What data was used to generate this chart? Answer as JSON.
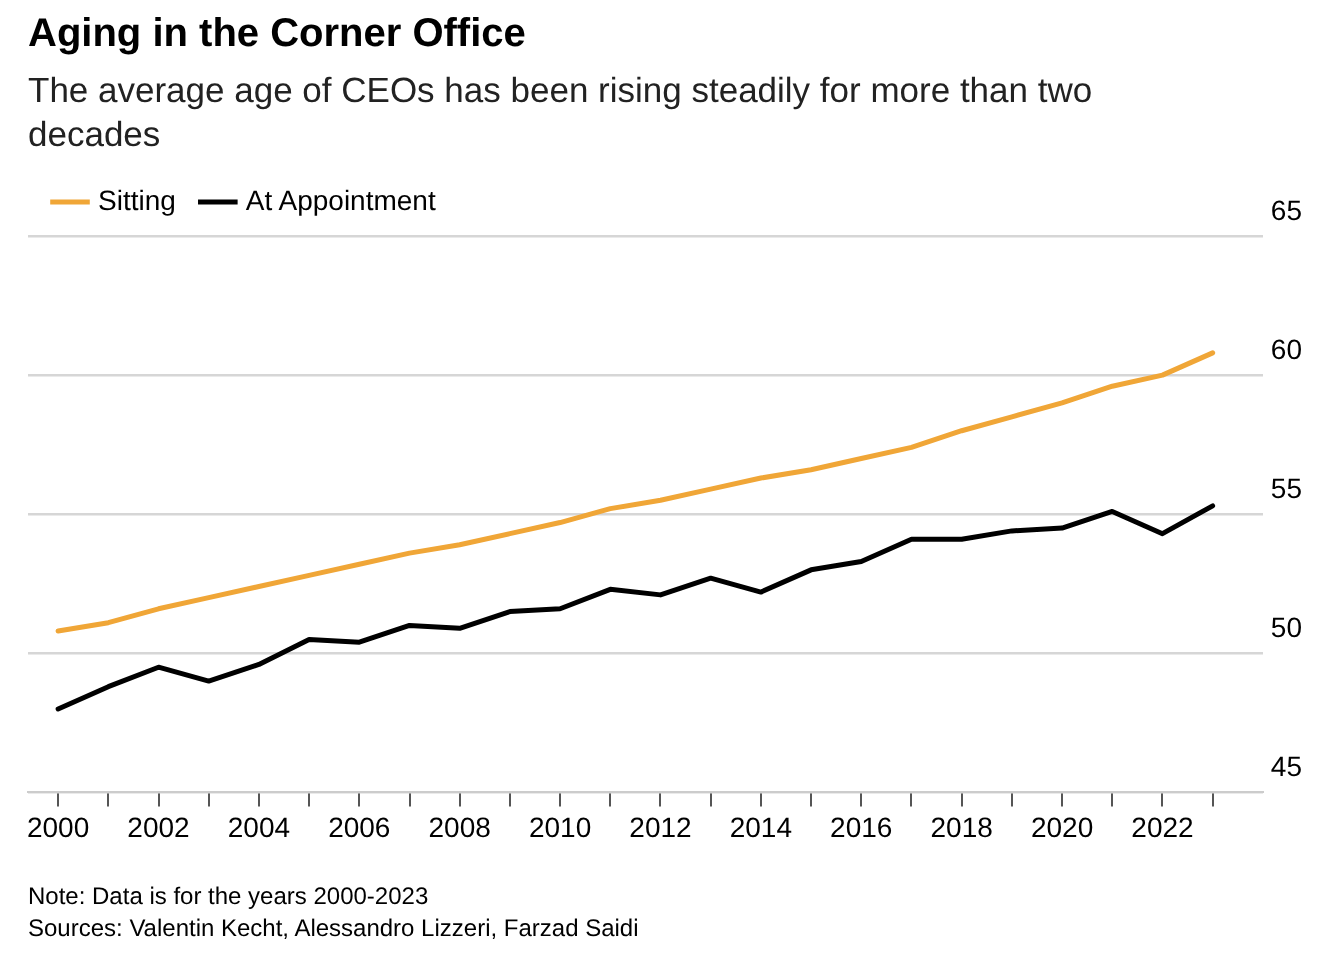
{
  "chart_data": {
    "type": "line",
    "title": "Aging in the Corner Office",
    "subtitle": "The average age of CEOs has been rising steadily for more than two decades",
    "x": [
      2000,
      2001,
      2002,
      2003,
      2004,
      2005,
      2006,
      2007,
      2008,
      2009,
      2010,
      2011,
      2012,
      2013,
      2014,
      2015,
      2016,
      2017,
      2018,
      2019,
      2020,
      2021,
      2022,
      2023
    ],
    "series": [
      {
        "name": "Sitting",
        "color": "#f0a637",
        "values": [
          50.8,
          51.1,
          51.6,
          52.0,
          52.4,
          52.8,
          53.2,
          53.6,
          53.9,
          54.3,
          54.7,
          55.2,
          55.5,
          55.9,
          56.3,
          56.6,
          57.0,
          57.4,
          58.0,
          58.5,
          59.0,
          59.6,
          60.0,
          60.8
        ]
      },
      {
        "name": "At Appointment",
        "color": "#000000",
        "values": [
          48.0,
          48.8,
          49.5,
          49.0,
          49.6,
          50.5,
          50.4,
          51.0,
          50.9,
          51.5,
          51.6,
          52.3,
          52.1,
          52.7,
          52.2,
          53.0,
          53.3,
          54.1,
          54.1,
          54.4,
          54.5,
          55.1,
          54.3,
          55.3
        ]
      }
    ],
    "xlim": [
      1999.4,
      2024
    ],
    "xticks": [
      2000,
      {
        "value": 2001,
        "label": null
      },
      2002,
      {
        "value": 2003,
        "label": null
      },
      2004,
      {
        "value": 2005,
        "label": null
      },
      2006,
      {
        "value": 2007,
        "label": null
      },
      2008,
      {
        "value": 2009,
        "label": null
      },
      2010,
      {
        "value": 2011,
        "label": null
      },
      2012,
      {
        "value": 2013,
        "label": null
      },
      2014,
      {
        "value": 2015,
        "label": null
      },
      2016,
      {
        "value": 2017,
        "label": null
      },
      2018,
      {
        "value": 2019,
        "label": null
      },
      2020,
      {
        "value": 2021,
        "label": null
      },
      2022,
      {
        "value": 2023,
        "label": null
      }
    ],
    "ylim": [
      45,
      65
    ],
    "yticks": [
      45,
      50,
      55,
      60,
      65
    ],
    "grid": "y",
    "legend": "top left",
    "marker": "none",
    "line_style": "solid",
    "annotations": [
      "Note: Data is for the years 2000-2023",
      "Sources: Valentin Kecht, Alessandro Lizzeri, Farzad Saidi"
    ]
  }
}
